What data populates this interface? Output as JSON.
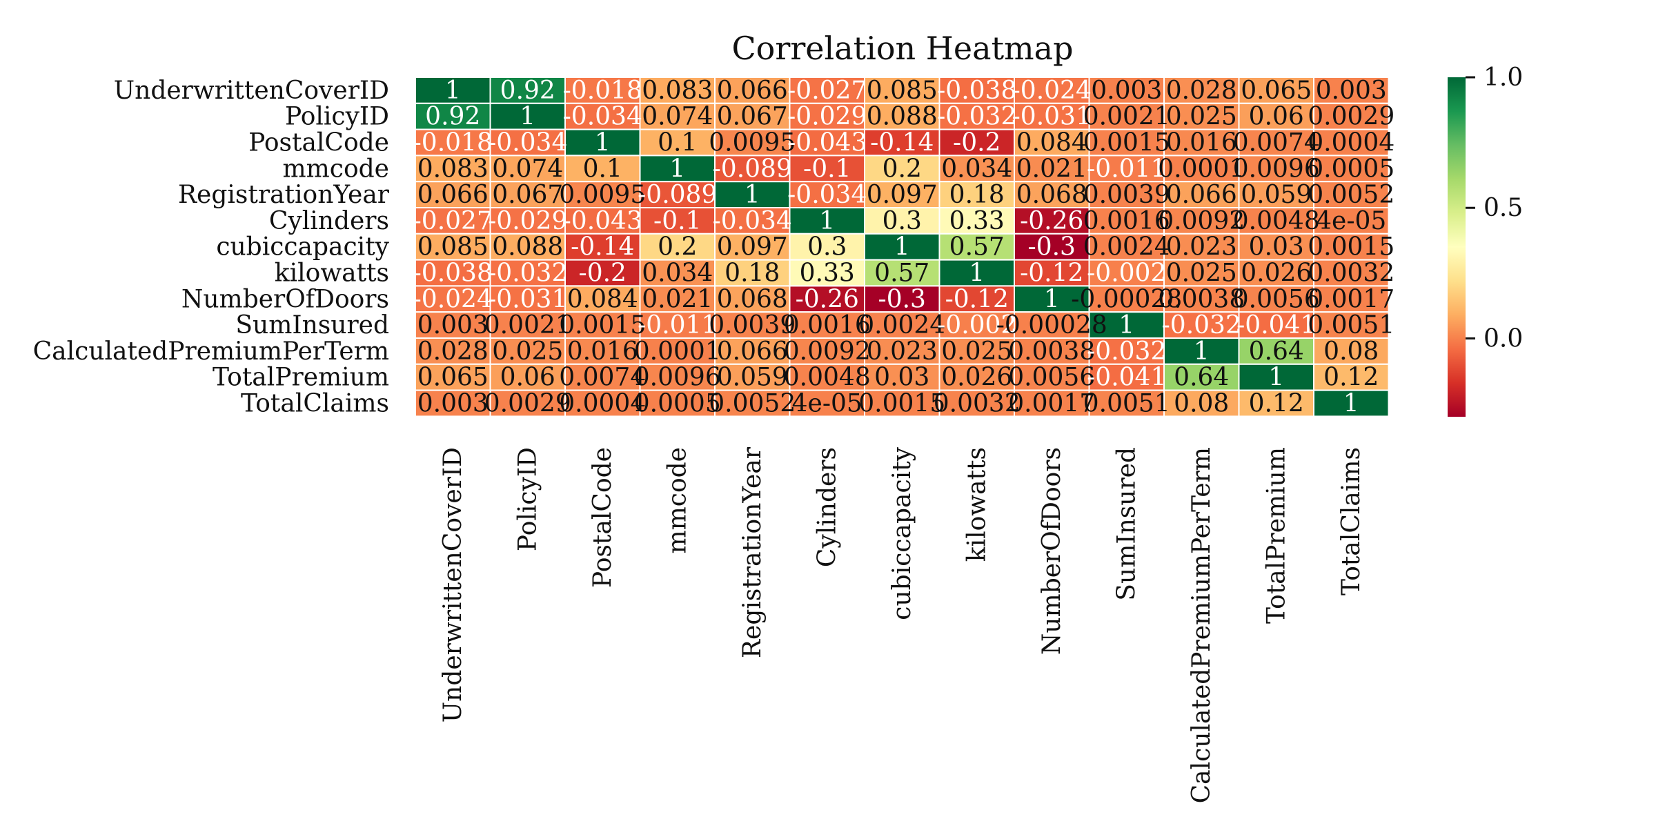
{
  "chart_data": {
    "type": "heatmap",
    "title": "Correlation Heatmap",
    "variables": [
      "UnderwrittenCoverID",
      "PolicyID",
      "PostalCode",
      "mmcode",
      "RegistrationYear",
      "Cylinders",
      "cubiccapacity",
      "kilowatts",
      "NumberOfDoors",
      "SumInsured",
      "CalculatedPremiumPerTerm",
      "TotalPremium",
      "TotalClaims"
    ],
    "values": [
      [
        1,
        0.92,
        -0.018,
        0.083,
        0.066,
        -0.027,
        0.085,
        -0.038,
        -0.024,
        0.003,
        0.028,
        0.065,
        0.003
      ],
      [
        0.92,
        1,
        -0.034,
        0.074,
        0.067,
        -0.029,
        0.088,
        -0.032,
        -0.031,
        0.0021,
        0.025,
        0.06,
        0.0029
      ],
      [
        -0.018,
        -0.034,
        1,
        0.1,
        0.0095,
        -0.043,
        -0.14,
        -0.2,
        0.084,
        0.0015,
        0.016,
        0.0074,
        0.0004
      ],
      [
        0.083,
        0.074,
        0.1,
        1,
        -0.089,
        -0.1,
        0.2,
        0.034,
        0.021,
        -0.011,
        0.0001,
        0.0096,
        0.0005
      ],
      [
        0.066,
        0.067,
        0.0095,
        -0.089,
        1,
        -0.034,
        0.097,
        0.18,
        0.068,
        0.0039,
        0.066,
        0.059,
        0.0052
      ],
      [
        -0.027,
        -0.029,
        -0.043,
        -0.1,
        -0.034,
        1,
        0.3,
        0.33,
        -0.26,
        0.0016,
        0.0092,
        0.0048,
        4e-05
      ],
      [
        0.085,
        0.088,
        -0.14,
        0.2,
        0.097,
        0.3,
        1,
        0.57,
        -0.3,
        0.0024,
        0.023,
        0.03,
        0.0015
      ],
      [
        -0.038,
        -0.032,
        -0.2,
        0.034,
        0.18,
        0.33,
        0.57,
        1,
        -0.12,
        -0.002,
        0.025,
        0.026,
        0.0032
      ],
      [
        -0.024,
        -0.031,
        0.084,
        0.021,
        0.068,
        -0.26,
        -0.3,
        -0.12,
        1,
        -0.00028,
        0.0038,
        0.0056,
        0.0017
      ],
      [
        0.003,
        0.0021,
        0.0015,
        -0.011,
        0.0039,
        0.0016,
        0.0024,
        -0.002,
        -0.00028,
        1,
        -0.032,
        -0.041,
        0.0051
      ],
      [
        0.028,
        0.025,
        0.016,
        0.0001,
        0.066,
        0.0092,
        0.023,
        0.025,
        0.0038,
        -0.032,
        1,
        0.64,
        0.08
      ],
      [
        0.065,
        0.06,
        0.0074,
        0.0096,
        0.059,
        0.0048,
        0.03,
        0.026,
        0.0056,
        -0.041,
        0.64,
        1,
        0.12
      ],
      [
        0.003,
        0.0029,
        0.0004,
        0.0005,
        0.0052,
        4e-05,
        0.0015,
        0.0032,
        0.0017,
        0.0051,
        0.08,
        0.12,
        1
      ]
    ],
    "labels": [
      [
        "1",
        "0.92",
        "-0.018",
        "0.083",
        "0.066",
        "-0.027",
        "0.085",
        "-0.038",
        "-0.024",
        "0.003",
        "0.028",
        "0.065",
        "0.003"
      ],
      [
        "0.92",
        "1",
        "-0.034",
        "0.074",
        "0.067",
        "-0.029",
        "0.088",
        "-0.032",
        "-0.031",
        "0.0021",
        "0.025",
        "0.06",
        "0.0029"
      ],
      [
        "-0.018",
        "-0.034",
        "1",
        "0.1",
        "0.0095",
        "-0.043",
        "-0.14",
        "-0.2",
        "0.084",
        "0.0015",
        "0.016",
        "0.0074",
        "0.0004"
      ],
      [
        "0.083",
        "0.074",
        "0.1",
        "1",
        "-0.089",
        "-0.1",
        "0.2",
        "0.034",
        "0.021",
        "-0.011",
        "0.0001",
        "0.0096",
        "0.0005"
      ],
      [
        "0.066",
        "0.067",
        "0.0095",
        "-0.089",
        "1",
        "-0.034",
        "0.097",
        "0.18",
        "0.068",
        "0.0039",
        "0.066",
        "0.059",
        "0.0052"
      ],
      [
        "-0.027",
        "-0.029",
        "-0.043",
        "-0.1",
        "-0.034",
        "1",
        "0.3",
        "0.33",
        "-0.26",
        "0.0016",
        "0.0092",
        "0.0048",
        "4e-05"
      ],
      [
        "0.085",
        "0.088",
        "-0.14",
        "0.2",
        "0.097",
        "0.3",
        "1",
        "0.57",
        "-0.3",
        "0.0024",
        "0.023",
        "0.03",
        "0.0015"
      ],
      [
        "-0.038",
        "-0.032",
        "-0.2",
        "0.034",
        "0.18",
        "0.33",
        "0.57",
        "1",
        "-0.12",
        "-0.002",
        "0.025",
        "0.026",
        "0.0032"
      ],
      [
        "-0.024",
        "-0.031",
        "0.084",
        "0.021",
        "0.068",
        "-0.26",
        "-0.3",
        "-0.12",
        "1",
        "-0.00028",
        "0.0038",
        "0.0056",
        "0.0017"
      ],
      [
        "0.003",
        "0.0021",
        "0.0015",
        "-0.011",
        "0.0039",
        "0.0016",
        "0.0024",
        "-0.002",
        "-0.00028",
        "1",
        "-0.032",
        "-0.041",
        "0.0051"
      ],
      [
        "0.028",
        "0.025",
        "0.016",
        "0.0001",
        "0.066",
        "0.0092",
        "0.023",
        "0.025",
        "0.0038",
        "-0.032",
        "1",
        "0.64",
        "0.08"
      ],
      [
        "0.065",
        "0.06",
        "0.0074",
        "0.0096",
        "0.059",
        "0.0048",
        "0.03",
        "0.026",
        "0.0056",
        "-0.041",
        "0.64",
        "1",
        "0.12"
      ],
      [
        "0.003",
        "0.0029",
        "0.0004",
        "0.0005",
        "0.0052",
        "4e-05",
        "0.0015",
        "0.0032",
        "0.0017",
        "0.0051",
        "0.08",
        "0.12",
        "1"
      ]
    ],
    "colormap": "RdYlGn",
    "colorbar": {
      "min": -0.3,
      "max": 1.0,
      "ticks": [
        0.0,
        0.5,
        1.0
      ],
      "tick_labels": [
        "0.0",
        "0.5",
        "1.0"
      ]
    },
    "colors": {
      "low": "#a50026",
      "mid": "#ffffbf",
      "high": "#006837",
      "cell_border": "#ffffff"
    }
  }
}
